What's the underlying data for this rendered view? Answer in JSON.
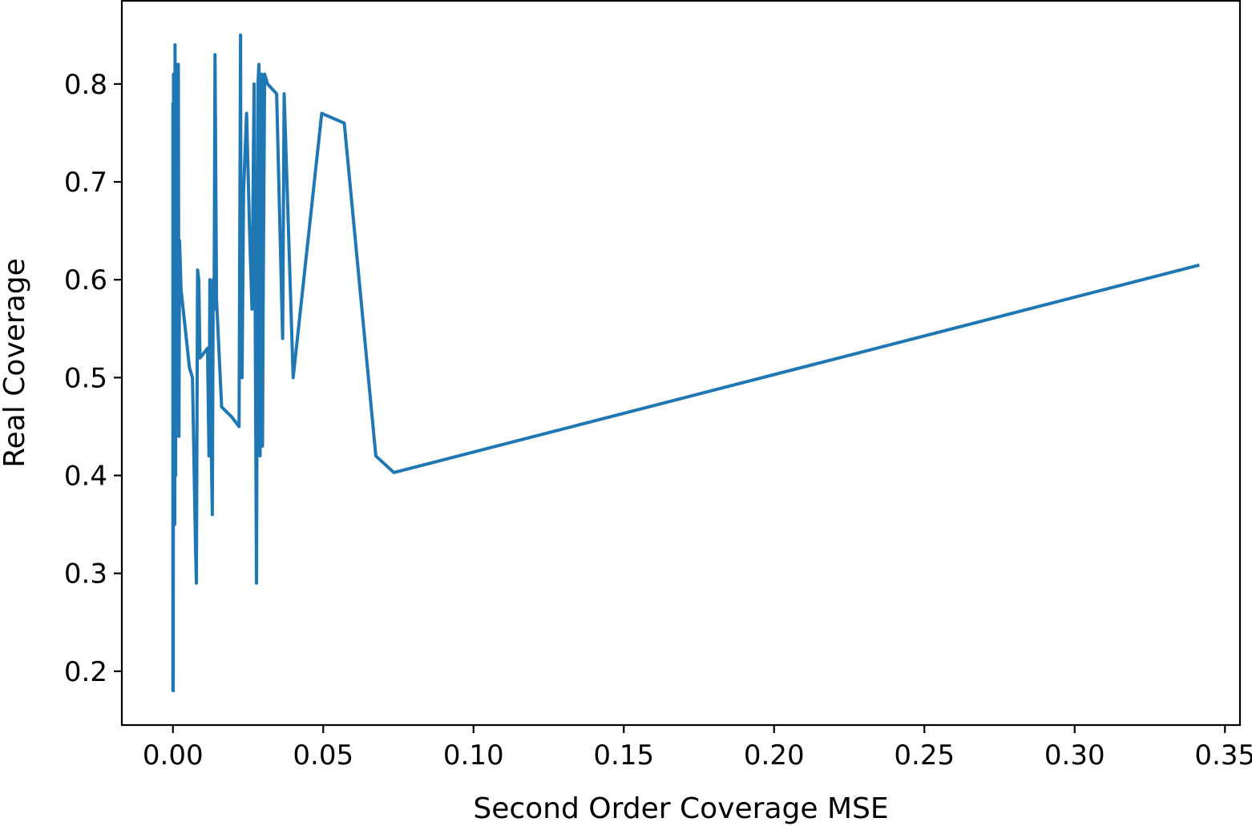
{
  "chart_data": {
    "type": "line",
    "title": "",
    "xlabel": "Second Order Coverage MSE",
    "ylabel": "Real Coverage",
    "xlim": [
      -0.017,
      0.355
    ],
    "ylim": [
      0.145,
      0.885
    ],
    "x_ticks": [
      0.0,
      0.05,
      0.1,
      0.15,
      0.2,
      0.25,
      0.3,
      0.35
    ],
    "x_tick_labels": [
      "0.00",
      "0.05",
      "0.10",
      "0.15",
      "0.20",
      "0.25",
      "0.30",
      "0.35"
    ],
    "y_ticks": [
      0.2,
      0.3,
      0.4,
      0.5,
      0.6,
      0.7,
      0.8
    ],
    "y_tick_labels": [
      "0.2",
      "0.3",
      "0.4",
      "0.5",
      "0.6",
      "0.7",
      "0.8"
    ],
    "grid": false,
    "series": [
      {
        "color": "#1f77b4",
        "x": [
          0.0,
          0.0,
          0.0001,
          0.0002,
          0.0004,
          0.0006,
          0.0007,
          0.0009,
          0.001,
          0.0012,
          0.0014,
          0.0016,
          0.0018,
          0.002,
          0.0022,
          0.0024,
          0.0027,
          0.0055,
          0.0065,
          0.0075,
          0.0078,
          0.0082,
          0.0086,
          0.009,
          0.0115,
          0.012,
          0.0123,
          0.0128,
          0.0131,
          0.0134,
          0.0137,
          0.014,
          0.0145,
          0.0162,
          0.0195,
          0.022,
          0.0225,
          0.0227,
          0.023,
          0.0235,
          0.0245,
          0.0255,
          0.0263,
          0.027,
          0.0278,
          0.0283,
          0.0286,
          0.029,
          0.0295,
          0.0298,
          0.03,
          0.0305,
          0.0315,
          0.0345,
          0.0365,
          0.037,
          0.04,
          0.0495,
          0.057,
          0.0675,
          0.0735,
          0.3415
        ],
        "y": [
          0.18,
          0.78,
          0.18,
          0.81,
          0.5,
          0.35,
          0.84,
          0.4,
          0.81,
          0.65,
          0.82,
          0.45,
          0.82,
          0.44,
          0.64,
          0.62,
          0.59,
          0.51,
          0.5,
          0.33,
          0.29,
          0.61,
          0.6,
          0.52,
          0.53,
          0.42,
          0.6,
          0.42,
          0.36,
          0.6,
          0.57,
          0.83,
          0.58,
          0.47,
          0.46,
          0.45,
          0.85,
          0.51,
          0.5,
          0.69,
          0.77,
          0.65,
          0.57,
          0.8,
          0.29,
          0.8,
          0.82,
          0.42,
          0.81,
          0.43,
          0.57,
          0.81,
          0.8,
          0.79,
          0.54,
          0.79,
          0.5,
          0.77,
          0.76,
          0.42,
          0.403,
          0.615
        ]
      }
    ]
  }
}
